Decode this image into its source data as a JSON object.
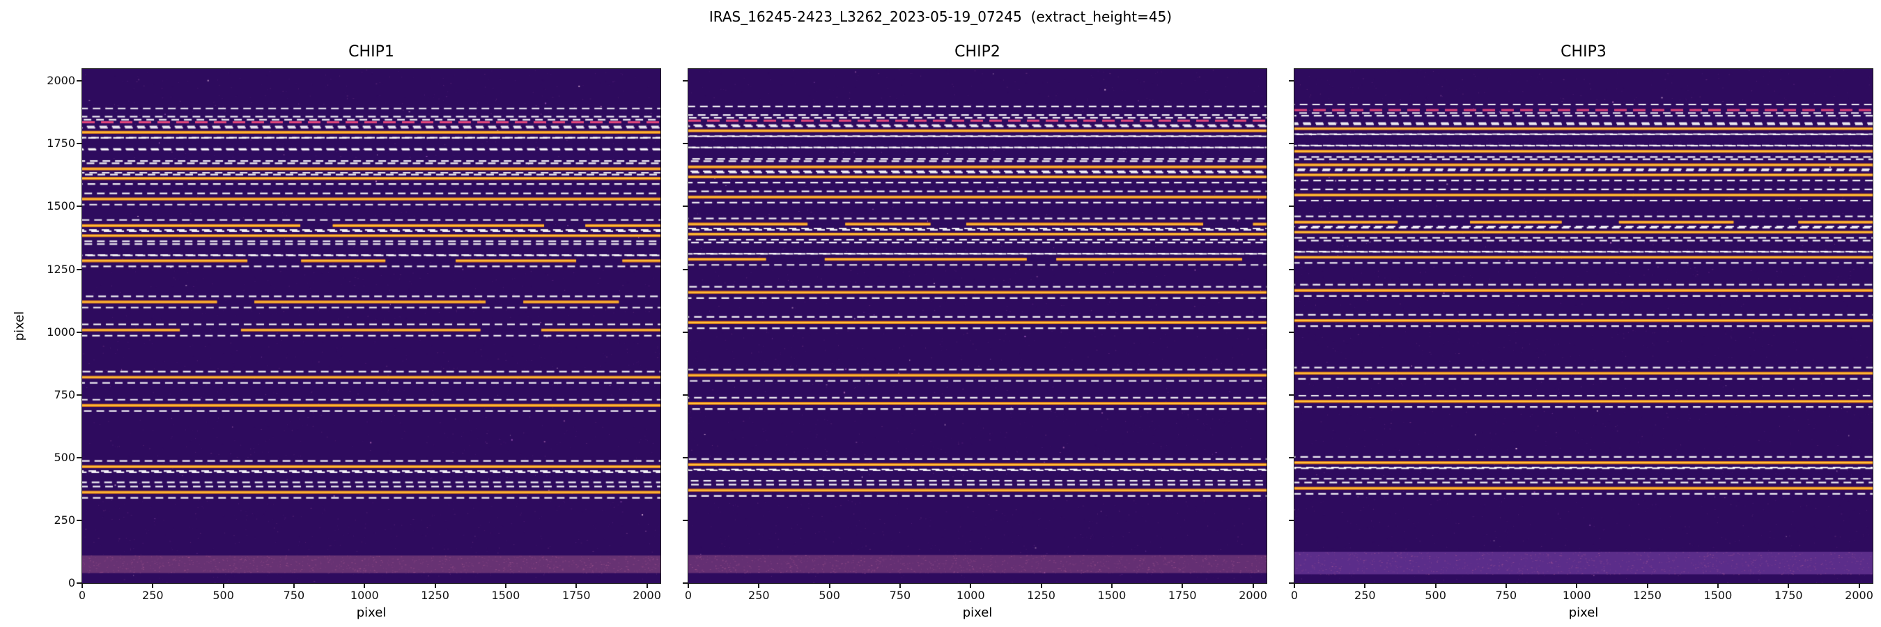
{
  "chart_data": {
    "type": "heatmap",
    "title": "IRAS_16245-2423_L3262_2023-05-19_07245  (extract_height=45)",
    "extract_height": 45,
    "xlabel": "pixel",
    "ylabel": "pixel",
    "xlim": [
      0,
      2048
    ],
    "ylim": [
      0,
      2048
    ],
    "xticks": [
      0,
      250,
      500,
      750,
      1000,
      1250,
      1500,
      1750,
      2000
    ],
    "yticks": [
      0,
      250,
      500,
      750,
      1000,
      1250,
      1500,
      1750,
      2000
    ],
    "legend": "none",
    "grid": false,
    "colors": {
      "background": "#2e0b5e",
      "trace_core": "#ffc23d",
      "trace_edge": "#e07b1a",
      "window": "#ffffff",
      "flagged": "#e0457b",
      "noise": [
        "#4a1d7a",
        "#6a2d8f",
        "#8a3d9f",
        "#c06ab0"
      ],
      "speck": [
        "#d98bd0",
        "#f0c4e8",
        "#b86ad0"
      ]
    },
    "panels": [
      {
        "title": "CHIP1",
        "bottom_band": {
          "y0": 40,
          "y1": 110,
          "color": "#a05a88",
          "alpha": 0.5
        },
        "orders": [
          {
            "y": 1868,
            "type": "dashed"
          },
          {
            "y": 1836,
            "type": "flagged"
          },
          {
            "y": 1796,
            "type": "solid"
          },
          {
            "y": 1752,
            "type": "dashed"
          },
          {
            "y": 1704,
            "type": "dashed"
          },
          {
            "y": 1650,
            "type": "solid"
          },
          {
            "y": 1612,
            "type": "solid"
          },
          {
            "y": 1530,
            "type": "solid"
          },
          {
            "y": 1424,
            "type": "partial"
          },
          {
            "y": 1384,
            "type": "solid"
          },
          {
            "y": 1328,
            "type": "dashed"
          },
          {
            "y": 1284,
            "type": "partial"
          },
          {
            "y": 1120,
            "type": "partial"
          },
          {
            "y": 1008,
            "type": "partial"
          },
          {
            "y": 820,
            "type": "solid"
          },
          {
            "y": 708,
            "type": "solid"
          },
          {
            "y": 464,
            "type": "solid"
          },
          {
            "y": 424,
            "type": "dashed"
          },
          {
            "y": 362,
            "type": "solid"
          }
        ]
      },
      {
        "title": "CHIP2",
        "bottom_band": {
          "y0": 40,
          "y1": 112,
          "color": "#9a5488",
          "alpha": 0.5
        },
        "orders": [
          {
            "y": 1876,
            "type": "dashed"
          },
          {
            "y": 1842,
            "type": "flagged"
          },
          {
            "y": 1802,
            "type": "solid"
          },
          {
            "y": 1758,
            "type": "dashed"
          },
          {
            "y": 1712,
            "type": "dashed"
          },
          {
            "y": 1658,
            "type": "solid"
          },
          {
            "y": 1618,
            "type": "solid"
          },
          {
            "y": 1538,
            "type": "solid"
          },
          {
            "y": 1430,
            "type": "partial"
          },
          {
            "y": 1390,
            "type": "solid"
          },
          {
            "y": 1334,
            "type": "dashed"
          },
          {
            "y": 1290,
            "type": "partial"
          },
          {
            "y": 1158,
            "type": "solid"
          },
          {
            "y": 1038,
            "type": "solid"
          },
          {
            "y": 828,
            "type": "solid"
          },
          {
            "y": 716,
            "type": "solid"
          },
          {
            "y": 472,
            "type": "solid"
          },
          {
            "y": 430,
            "type": "dashed"
          },
          {
            "y": 370,
            "type": "solid"
          }
        ]
      },
      {
        "title": "CHIP3",
        "bottom_band": {
          "y0": 35,
          "y1": 125,
          "color": "#6b3a9a",
          "alpha": 0.75
        },
        "orders": [
          {
            "y": 1884,
            "type": "flagged"
          },
          {
            "y": 1850,
            "type": "dashed"
          },
          {
            "y": 1810,
            "type": "solid"
          },
          {
            "y": 1766,
            "type": "dashed"
          },
          {
            "y": 1720,
            "type": "solid"
          },
          {
            "y": 1666,
            "type": "solid"
          },
          {
            "y": 1626,
            "type": "solid"
          },
          {
            "y": 1546,
            "type": "solid"
          },
          {
            "y": 1438,
            "type": "partial"
          },
          {
            "y": 1398,
            "type": "solid"
          },
          {
            "y": 1342,
            "type": "dashed"
          },
          {
            "y": 1298,
            "type": "solid"
          },
          {
            "y": 1166,
            "type": "solid"
          },
          {
            "y": 1046,
            "type": "solid"
          },
          {
            "y": 836,
            "type": "solid"
          },
          {
            "y": 724,
            "type": "solid"
          },
          {
            "y": 480,
            "type": "solid"
          },
          {
            "y": 438,
            "type": "dashed"
          },
          {
            "y": 378,
            "type": "solid"
          }
        ]
      }
    ]
  }
}
